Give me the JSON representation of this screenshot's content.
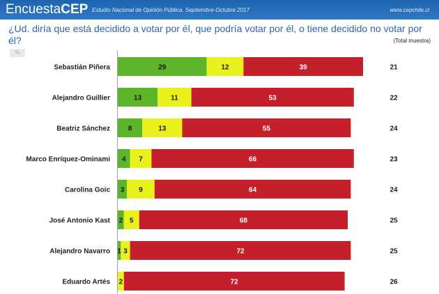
{
  "header": {
    "brand_prefix": "Encuesta",
    "brand_suffix": "CEP",
    "study": "Estudio Nacional de Opinión Pública, Septiembre-Octubre 2017",
    "url": "www.cepchile.cl"
  },
  "question": "¿Ud. diría que está decidido a votar por él, que podría votar por él, o tiene decidido no votar por él?",
  "total_label": "(Total muestra)",
  "pct_icon": "%",
  "colors": {
    "decidido": "#5db52a",
    "podria": "#e9f21c",
    "no_votar": "#c4202b"
  },
  "chart_data": {
    "type": "bar",
    "orientation": "horizontal",
    "stacked": true,
    "categories": [
      "Sebastián Piñera",
      "Alejandro Guillier",
      "Beatriz Sánchez",
      "Marco Enríquez-Ominami",
      "Carolina Goic",
      "José Antonio Kast",
      "Alejandro Navarro",
      "Eduardo Artés"
    ],
    "series": [
      {
        "values": [
          29,
          13,
          8,
          4,
          3,
          2,
          1,
          0
        ]
      },
      {
        "values": [
          12,
          11,
          13,
          7,
          9,
          5,
          3,
          2
        ]
      },
      {
        "values": [
          39,
          53,
          55,
          66,
          64,
          68,
          72,
          72
        ]
      }
    ],
    "value_labels": [
      [
        "29",
        "13",
        "8",
        "4",
        "3",
        "2",
        "1",
        ""
      ],
      [
        "12",
        "11",
        "13",
        "7",
        "9",
        "5",
        "3",
        "2"
      ],
      [
        "39",
        "53",
        "55",
        "66",
        "64",
        "68",
        "72",
        "72"
      ]
    ],
    "right_values": [
      "21",
      "22",
      "24",
      "23",
      "24",
      "25",
      "25",
      "26"
    ],
    "xlim": [
      0,
      100
    ],
    "grid": false,
    "legend": "none"
  }
}
